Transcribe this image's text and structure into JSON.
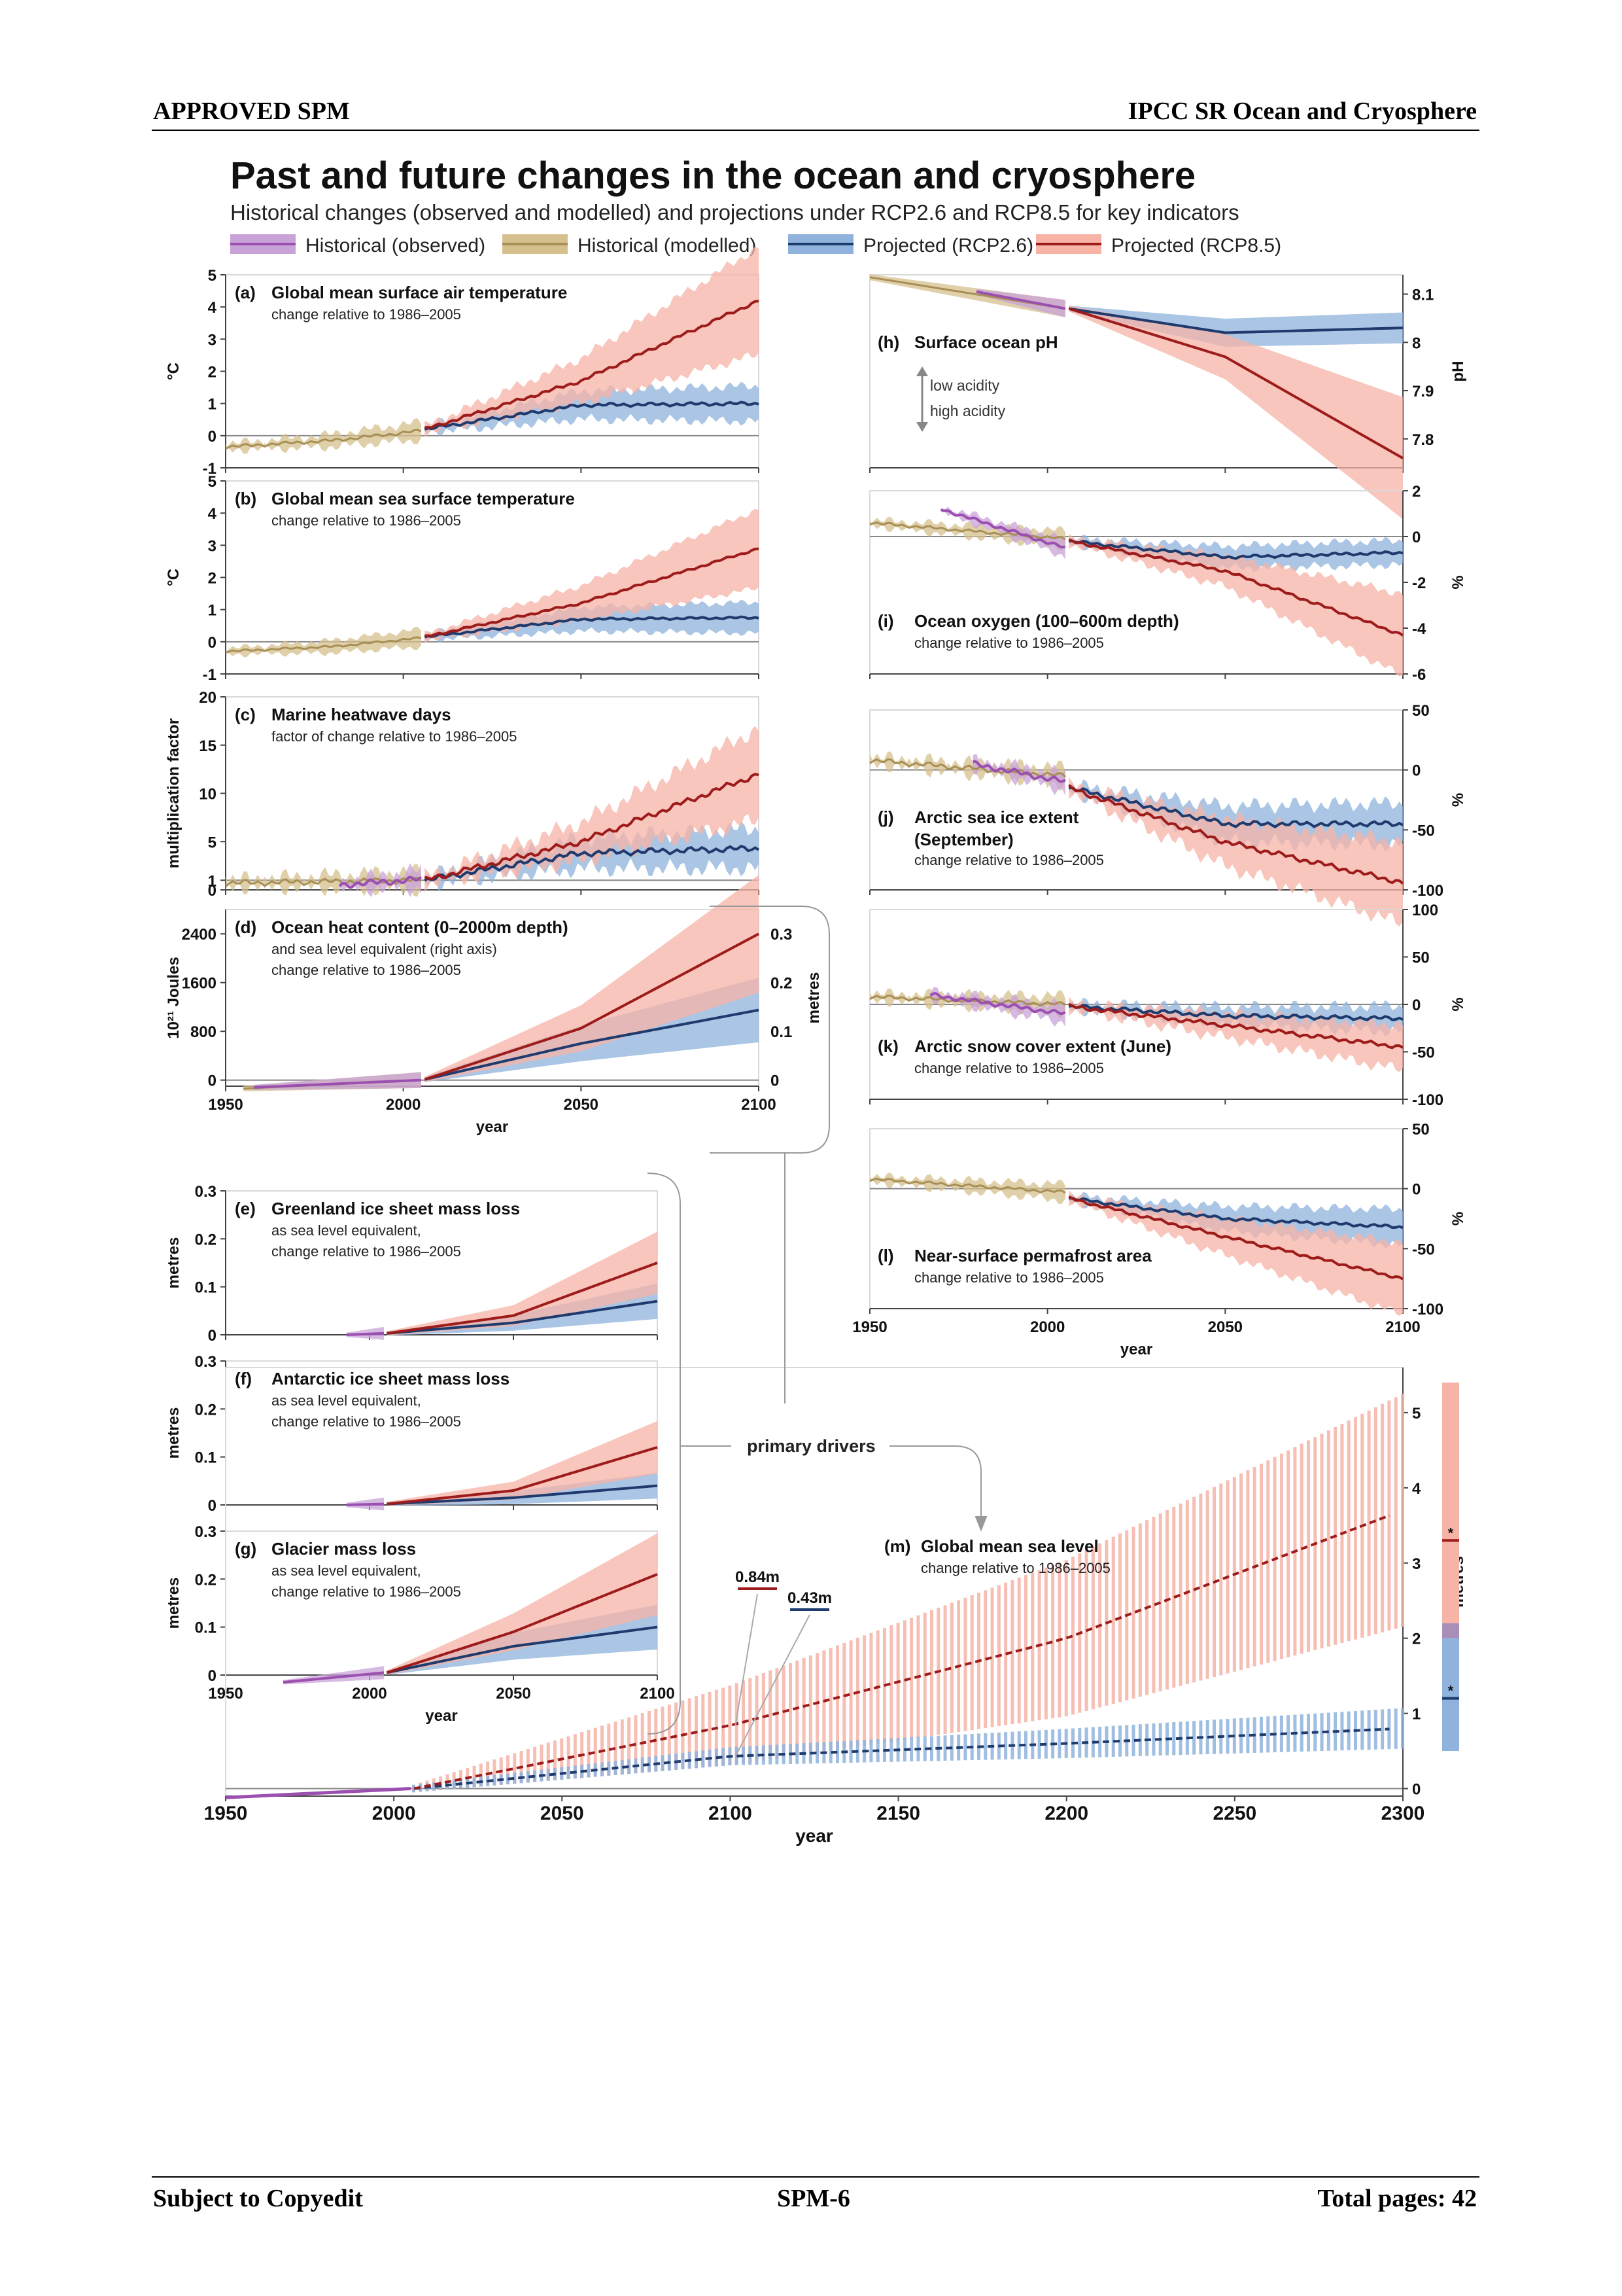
{
  "page": {
    "header_left": "APPROVED SPM",
    "header_right": "IPCC SR Ocean and Cryosphere",
    "footer_left": "Subject to Copyedit",
    "footer_center": "SPM-6",
    "footer_right": "Total pages: 42"
  },
  "figure": {
    "title": "Past and future changes in the ocean and cryosphere",
    "subtitle": "Historical changes (observed and modelled) and projections under RCP2.6 and RCP8.5 for key indicators",
    "legend": [
      {
        "label": "Historical (observed)",
        "color": "#9b4fb0",
        "fill": "#c9a3d8"
      },
      {
        "label": "Historical (modelled)",
        "color": "#a88f55",
        "fill": "#d6c08e"
      },
      {
        "label": "Projected (RCP2.6)",
        "color": "#1f3b6e",
        "fill": "#8fb3dc"
      },
      {
        "label": "Projected (RCP8.5)",
        "color": "#9e1b1b",
        "fill": "#f6b3a6"
      }
    ],
    "primary_drivers": "primary drivers",
    "xlabel": "year",
    "low_acidity": "low acidity",
    "high_acidity": "high acidity"
  },
  "colors": {
    "observed": "#9b4fb0",
    "modelled": "#a88f55",
    "modelled_fill": "#d6c08e",
    "rcp26": "#1f3b6e",
    "rcp26_fill": "#8fb3dc",
    "rcp85": "#9e1b1b",
    "rcp85_fill": "#f6b3a6"
  },
  "chart_data": [
    {
      "id": "a",
      "type": "line",
      "label": "(a)",
      "title": "Global mean surface air temperature",
      "subtitle": [
        "change relative to 1986–2005"
      ],
      "ylabel": "°C",
      "xlim": [
        1950,
        2100
      ],
      "ylim": [
        -1,
        5
      ],
      "yticks": [
        -1,
        0,
        1,
        2,
        3,
        4,
        5
      ],
      "noise": 0.12,
      "hist": {
        "x": [
          1950,
          1980,
          2005
        ],
        "y": [
          -0.35,
          -0.15,
          0.15
        ]
      },
      "rcp26": {
        "x": [
          2006,
          2050,
          2100
        ],
        "y": [
          0.2,
          0.95,
          1.0
        ]
      },
      "rcp85": {
        "x": [
          2006,
          2050,
          2100
        ],
        "y": [
          0.2,
          1.7,
          4.2
        ]
      }
    },
    {
      "id": "b",
      "type": "line",
      "label": "(b)",
      "title": "Global mean sea surface temperature",
      "subtitle": [
        "change relative to 1986–2005"
      ],
      "ylabel": "°C",
      "xlim": [
        1950,
        2100
      ],
      "ylim": [
        -1,
        5
      ],
      "yticks": [
        -1,
        0,
        1,
        2,
        3,
        4,
        5
      ],
      "noise": 0.08,
      "hist": {
        "x": [
          1950,
          1980,
          2005
        ],
        "y": [
          -0.3,
          -0.15,
          0.12
        ]
      },
      "rcp26": {
        "x": [
          2006,
          2050,
          2100
        ],
        "y": [
          0.15,
          0.7,
          0.75
        ]
      },
      "rcp85": {
        "x": [
          2006,
          2050,
          2100
        ],
        "y": [
          0.15,
          1.2,
          2.9
        ]
      }
    },
    {
      "id": "c",
      "type": "line",
      "label": "(c)",
      "title": "Marine heatwave days",
      "subtitle": [
        "factor of change relative to 1986–2005"
      ],
      "ylabel": "multiplication factor",
      "xlim": [
        1950,
        2100
      ],
      "ylim": [
        0,
        20
      ],
      "yticks": [
        0,
        1,
        5,
        10,
        15,
        20
      ],
      "noise": 0.7,
      "obs": {
        "x": [
          1982,
          2005
        ],
        "y": [
          0.5,
          1.1
        ]
      },
      "hist": {
        "x": [
          1950,
          2005
        ],
        "y": [
          0.7,
          1.0
        ]
      },
      "rcp26": {
        "x": [
          2006,
          2050,
          2100
        ],
        "y": [
          1.0,
          3.8,
          4.3
        ]
      },
      "rcp85": {
        "x": [
          2006,
          2050,
          2100
        ],
        "y": [
          1.0,
          5.0,
          12.0
        ]
      }
    },
    {
      "id": "d",
      "type": "line",
      "label": "(d)",
      "title": "Ocean heat content (0–2000m depth)",
      "subtitle": [
        "and sea level equivalent (right axis)",
        "change relative to 1986–2005"
      ],
      "ylabel": "10²¹ Joules",
      "ylabel_right": "metres",
      "xlim": [
        1950,
        2100
      ],
      "ylim": [
        -100,
        2800
      ],
      "yticks": [
        0,
        800,
        1600,
        2400
      ],
      "right_ticks": [
        {
          "v": 0,
          "at": 0
        },
        {
          "v": 0.1,
          "at": 800
        },
        {
          "v": 0.2,
          "at": 1600
        },
        {
          "v": 0.3,
          "at": 2400
        }
      ],
      "noise": 0,
      "obs": {
        "x": [
          1958,
          2005
        ],
        "y": [
          -120,
          0
        ]
      },
      "hist": {
        "x": [
          1955,
          2005
        ],
        "y": [
          -140,
          0
        ]
      },
      "rcp26": {
        "x": [
          2006,
          2050,
          2100
        ],
        "y": [
          10,
          600,
          1150
        ]
      },
      "rcp85": {
        "x": [
          2006,
          2050,
          2100
        ],
        "y": [
          10,
          850,
          2400
        ]
      }
    },
    {
      "id": "e",
      "type": "line",
      "label": "(e)",
      "title": "Greenland ice sheet mass loss",
      "subtitle": [
        "as sea level equivalent,",
        "change relative to 1986–2005"
      ],
      "ylabel": "metres",
      "xlim": [
        1950,
        2100
      ],
      "ylim": [
        0,
        0.3
      ],
      "yticks": [
        0,
        0.1,
        0.2,
        0.3
      ],
      "noise": 0,
      "obs": {
        "x": [
          1992,
          2005
        ],
        "y": [
          0,
          0.003
        ]
      },
      "rcp26": {
        "x": [
          2006,
          2050,
          2100
        ],
        "y": [
          0.003,
          0.025,
          0.07
        ]
      },
      "rcp85": {
        "x": [
          2006,
          2050,
          2100
        ],
        "y": [
          0.003,
          0.04,
          0.15
        ]
      }
    },
    {
      "id": "f",
      "type": "line",
      "label": "(f)",
      "title": "Antarctic ice sheet mass loss",
      "subtitle": [
        "as sea level equivalent,",
        "change relative to 1986–2005"
      ],
      "ylabel": "metres",
      "xlim": [
        1950,
        2100
      ],
      "ylim": [
        0,
        0.3
      ],
      "yticks": [
        0,
        0.1,
        0.2,
        0.3
      ],
      "noise": 0,
      "obs": {
        "x": [
          1992,
          2005
        ],
        "y": [
          0,
          0.002
        ]
      },
      "rcp26": {
        "x": [
          2006,
          2050,
          2100
        ],
        "y": [
          0.002,
          0.015,
          0.04
        ]
      },
      "rcp85": {
        "x": [
          2006,
          2050,
          2100
        ],
        "y": [
          0.002,
          0.03,
          0.12
        ]
      }
    },
    {
      "id": "g",
      "type": "line",
      "label": "(g)",
      "title": "Glacier mass loss",
      "subtitle": [
        "as sea level equivalent,",
        "change relative to 1986–2005"
      ],
      "ylabel": "metres",
      "xlim": [
        1950,
        2100
      ],
      "ylim": [
        0,
        0.3
      ],
      "yticks": [
        0,
        0.1,
        0.2,
        0.3
      ],
      "noise": 0,
      "obs": {
        "x": [
          1970,
          2005
        ],
        "y": [
          -0.015,
          0.005
        ]
      },
      "rcp26": {
        "x": [
          2006,
          2050,
          2100
        ],
        "y": [
          0.005,
          0.06,
          0.1
        ]
      },
      "rcp85": {
        "x": [
          2006,
          2050,
          2100
        ],
        "y": [
          0.005,
          0.09,
          0.21
        ]
      }
    },
    {
      "id": "h",
      "type": "line",
      "label": "(h)",
      "title": "Surface ocean pH",
      "subtitle": [],
      "ylabel": "pH",
      "xlim": [
        1950,
        2100
      ],
      "ylim": [
        7.74,
        8.14
      ],
      "yticks": [
        7.8,
        7.9,
        8.0,
        8.1
      ],
      "noise": 0,
      "obs": {
        "x": [
          1980,
          2005
        ],
        "y": [
          8.105,
          8.07
        ]
      },
      "hist": {
        "x": [
          1950,
          2005
        ],
        "y": [
          8.135,
          8.07
        ]
      },
      "rcp26": {
        "x": [
          2006,
          2050,
          2100
        ],
        "y": [
          8.07,
          8.02,
          8.03
        ]
      },
      "rcp85": {
        "x": [
          2006,
          2050,
          2100
        ],
        "y": [
          8.07,
          7.97,
          7.76
        ]
      }
    },
    {
      "id": "i",
      "type": "line",
      "label": "(i)",
      "title": "Ocean oxygen (100–600m depth)",
      "subtitle": [
        "change relative to 1986–2005"
      ],
      "ylabel": "%",
      "xlim": [
        1950,
        2100
      ],
      "ylim": [
        -6,
        2
      ],
      "yticks": [
        -6,
        -4,
        -2,
        0,
        2
      ],
      "noise": 0.15,
      "obs": {
        "x": [
          1970,
          2005
        ],
        "y": [
          1.2,
          -0.5
        ]
      },
      "hist": {
        "x": [
          1950,
          2005
        ],
        "y": [
          0.6,
          -0.1
        ]
      },
      "rcp26": {
        "x": [
          2006,
          2050,
          2100
        ],
        "y": [
          -0.2,
          -0.9,
          -0.7
        ]
      },
      "rcp85": {
        "x": [
          2006,
          2050,
          2100
        ],
        "y": [
          -0.2,
          -1.5,
          -4.3
        ]
      }
    },
    {
      "id": "j",
      "type": "line",
      "label": "(j)",
      "title": "Arctic sea ice extent (September)",
      "subtitle": [
        "change relative to 1986–2005"
      ],
      "ylabel": "%",
      "xlim": [
        1950,
        2100
      ],
      "ylim": [
        -100,
        50
      ],
      "yticks": [
        -100,
        -50,
        0,
        50
      ],
      "noise": 5,
      "obs": {
        "x": [
          1979,
          2005
        ],
        "y": [
          5,
          -10
        ]
      },
      "hist": {
        "x": [
          1950,
          2005
        ],
        "y": [
          8,
          -5
        ]
      },
      "rcp26": {
        "x": [
          2006,
          2050,
          2100
        ],
        "y": [
          -15,
          -45,
          -45
        ]
      },
      "rcp85": {
        "x": [
          2006,
          2050,
          2100
        ],
        "y": [
          -15,
          -60,
          -94
        ]
      }
    },
    {
      "id": "k",
      "type": "line",
      "label": "(k)",
      "title": "Arctic snow cover extent (June)",
      "subtitle": [
        "change relative to 1986–2005"
      ],
      "ylabel": "%",
      "xlim": [
        1950,
        2100
      ],
      "ylim": [
        -100,
        100
      ],
      "yticks": [
        -100,
        -50,
        0,
        50,
        100
      ],
      "noise": 5,
      "obs": {
        "x": [
          1967,
          2005
        ],
        "y": [
          10,
          -10
        ]
      },
      "hist": {
        "x": [
          1950,
          2005
        ],
        "y": [
          8,
          0
        ]
      },
      "rcp26": {
        "x": [
          2006,
          2050,
          2100
        ],
        "y": [
          -2,
          -12,
          -15
        ]
      },
      "rcp85": {
        "x": [
          2006,
          2050,
          2100
        ],
        "y": [
          -2,
          -22,
          -45
        ]
      }
    },
    {
      "id": "l",
      "type": "line",
      "label": "(l)",
      "title": "Near-surface permafrost area",
      "subtitle": [
        "change relative to 1986–2005"
      ],
      "ylabel": "%",
      "xlim": [
        1950,
        2100
      ],
      "ylim": [
        -100,
        50
      ],
      "yticks": [
        -100,
        -50,
        0,
        50
      ],
      "noise": 3,
      "hist": {
        "x": [
          1950,
          2005
        ],
        "y": [
          8,
          -3
        ]
      },
      "rcp26": {
        "x": [
          2006,
          2050,
          2100
        ],
        "y": [
          -8,
          -25,
          -32
        ]
      },
      "rcp85": {
        "x": [
          2006,
          2050,
          2100
        ],
        "y": [
          -8,
          -40,
          -75
        ]
      }
    },
    {
      "id": "m",
      "type": "line",
      "label": "(m)",
      "title": "Global mean sea level",
      "subtitle": [
        "change relative to 1986–2005"
      ],
      "ylabel": "metres",
      "xlim": [
        1950,
        2300
      ],
      "ylim": [
        -0.1,
        5.6
      ],
      "yticks": [
        0,
        1,
        2,
        3,
        4,
        5
      ],
      "xticks": [
        1950,
        2000,
        2050,
        2100,
        2150,
        2200,
        2250,
        2300
      ],
      "obs": {
        "x": [
          1950,
          2005
        ],
        "y": [
          -0.12,
          0.0
        ]
      },
      "rcp26": {
        "x": [
          2006,
          2100,
          2200,
          2300
        ],
        "y": [
          0.0,
          0.43,
          0.6,
          0.8
        ]
      },
      "rcp85": {
        "x": [
          2006,
          2100,
          2200,
          2300
        ],
        "y": [
          0.0,
          0.84,
          2.0,
          3.7
        ]
      },
      "rcp85_range_2300": [
        2.3,
        5.4
      ],
      "rcp26_range_2300": [
        0.6,
        1.0
      ],
      "annotations": [
        {
          "text": "0.84m",
          "series": "rcp85",
          "year": 2100
        },
        {
          "text": "0.43m",
          "series": "rcp26",
          "year": 2100
        }
      ],
      "side_bar": {
        "rcp85_range": [
          2.2,
          5.4
        ],
        "rcp85_marker": 3.3,
        "rcp26_range": [
          0.5,
          2.0
        ],
        "rcp26_marker": 1.2,
        "marker_label": "*"
      }
    }
  ]
}
